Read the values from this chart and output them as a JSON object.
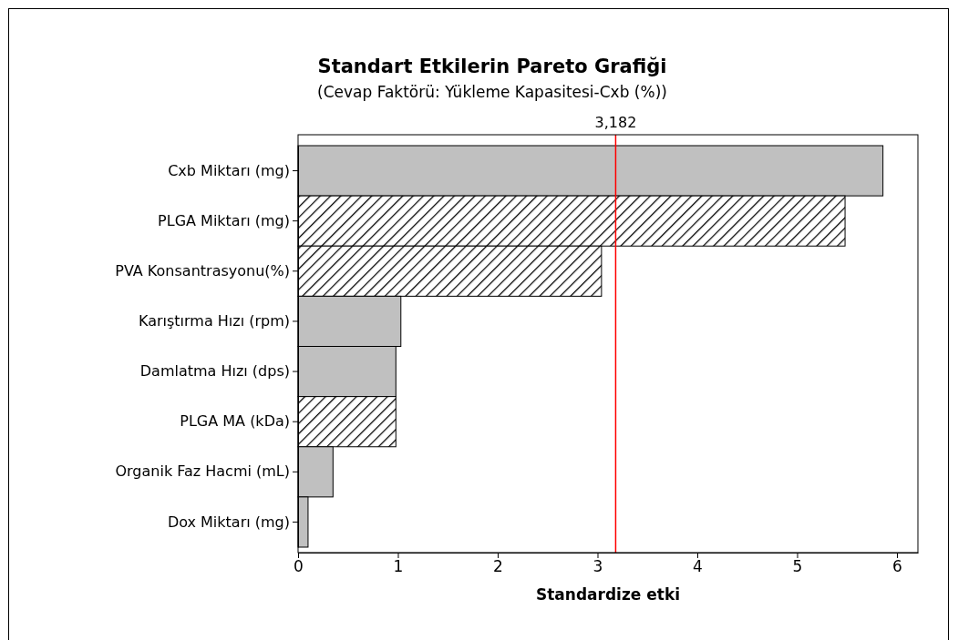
{
  "chart_data": {
    "type": "bar",
    "orientation": "horizontal",
    "title": "Standart Etkilerin Pareto Grafiği",
    "subtitle": "(Cevap Faktörü: Yükleme Kapasitesi-Cxb (%))",
    "xlabel": "Standardize etki",
    "categories": [
      "Cxb Miktarı (mg)",
      "PLGA Miktarı (mg)",
      "PVA Konsantrasyonu(%)",
      "Karıştırma Hızı (rpm)",
      "Damlatma Hızı (dps)",
      "PLGA MA (kDa)",
      "Organik Faz Hacmi (mL)",
      "Dox Miktarı (mg)"
    ],
    "values": [
      5.86,
      5.48,
      3.04,
      1.03,
      0.98,
      0.98,
      0.35,
      0.1
    ],
    "colors": [
      "#c0c0c0",
      "#000000",
      "#000000",
      "#c0c0c0",
      "#c0c0c0",
      "#000000",
      "#c0c0c0",
      "#c0c0c0"
    ],
    "xlim": [
      0,
      6.21
    ],
    "xticks": [
      0,
      1,
      2,
      3,
      4,
      5,
      6
    ],
    "ref_lines": [
      {
        "axis": "x",
        "value": 3.182,
        "label": "3,182",
        "color": "#ff0000"
      }
    ],
    "grid": false
  }
}
